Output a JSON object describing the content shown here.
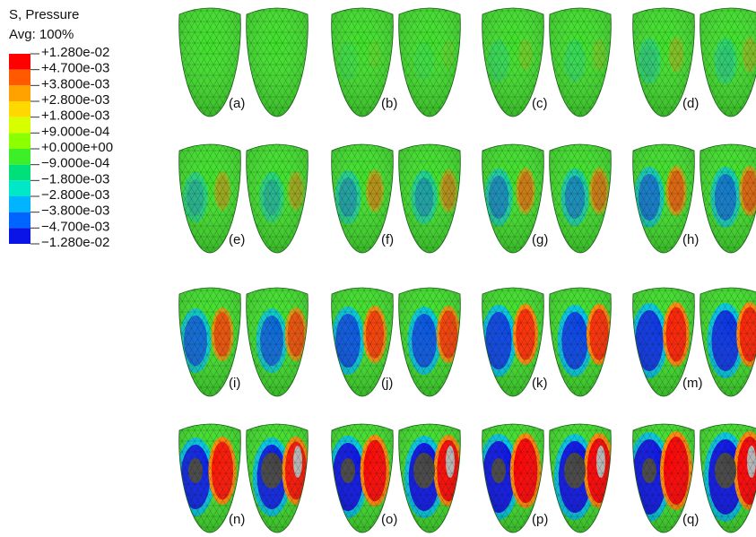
{
  "legend": {
    "title": "S, Pressure",
    "subtitle": "Avg: 100%",
    "labels": [
      "+1.280e-02",
      "+4.700e-03",
      "+3.800e-03",
      "+2.800e-03",
      "+1.800e-03",
      "+9.000e-04",
      "+0.000e+00",
      "−9.000e-04",
      "−1.800e-03",
      "−2.800e-03",
      "−3.800e-03",
      "−4.700e-03",
      "−1.280e-02"
    ]
  },
  "panels": [
    {
      "label": "(a)"
    },
    {
      "label": "(b)"
    },
    {
      "label": "(c)"
    },
    {
      "label": "(d)"
    },
    {
      "label": "(e)"
    },
    {
      "label": "(f)"
    },
    {
      "label": "(g)"
    },
    {
      "label": "(h)"
    },
    {
      "label": "(i)"
    },
    {
      "label": "(j)"
    },
    {
      "label": "(k)"
    },
    {
      "label": "(m)"
    },
    {
      "label": "(n)"
    },
    {
      "label": "(o)"
    },
    {
      "label": "(p)"
    },
    {
      "label": "(q)"
    }
  ]
}
